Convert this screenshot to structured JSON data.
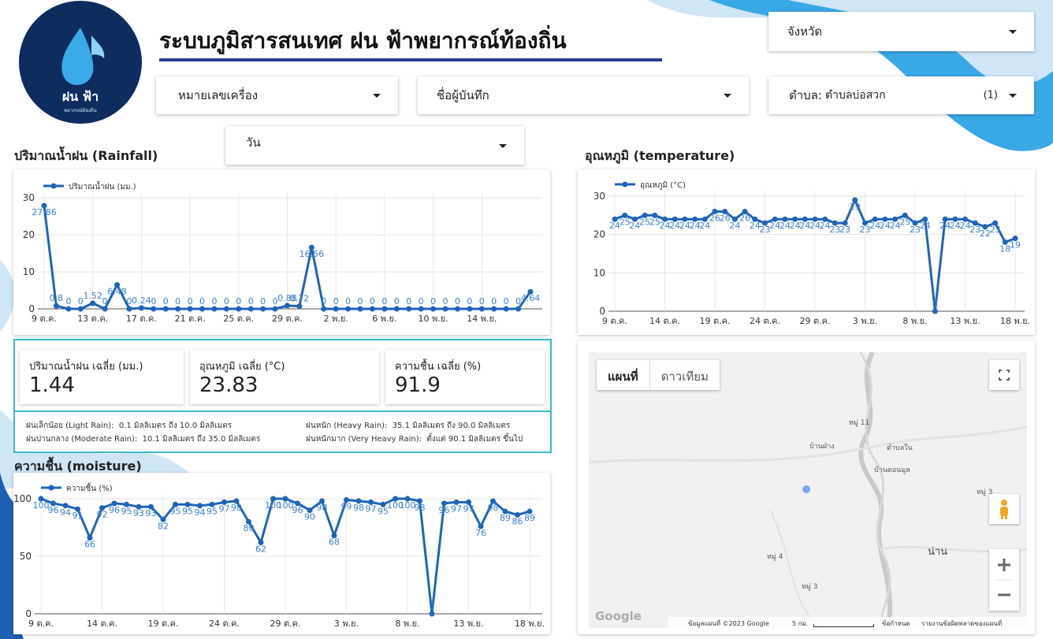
{
  "header": {
    "title": "ระบบภูมิสารสนเทศ ฝน ฟ้าพยากรณ์ท้องถิ่น",
    "logo": {
      "name": "ฝน ฟ้า",
      "tagline": "พยากรณ์ท้องถิ่น"
    }
  },
  "filters": {
    "province": "จังหวัด",
    "device": "หมายเลขเครื่อง",
    "recorder": "ชื่อผู้บันทึก",
    "subdistrict": {
      "label": "ตำบล:",
      "value": "ตำบลบ่อสวก",
      "count": "(1)"
    },
    "period": "วัน"
  },
  "chart_data": [
    {
      "type": "line",
      "title": "ปริมาณน้ำฝน (Rainfall)",
      "categories": [
        "9 ต.ค.",
        null,
        null,
        null,
        "13 ต.ค.",
        null,
        null,
        null,
        "17 ต.ค.",
        null,
        null,
        null,
        "21 ต.ค.",
        null,
        null,
        null,
        "25 ต.ค.",
        null,
        null,
        null,
        "29 ต.ค.",
        null,
        null,
        null,
        "2 พ.ย.",
        null,
        null,
        null,
        "6 พ.ย.",
        null,
        null,
        null,
        "10 พ.ย.",
        null,
        null,
        null,
        "14 พ.ย.",
        null,
        null,
        null,
        null
      ],
      "series": [
        {
          "name": "ปริมาณน้ำฝน (มม.)",
          "color": "#1f64b9",
          "values": [
            27.86,
            0.8,
            0,
            0,
            1.52,
            0,
            6.48,
            0,
            0.24,
            0,
            0,
            0,
            0,
            0,
            0,
            0,
            0,
            0,
            0,
            0,
            0.88,
            0.72,
            16.56,
            0,
            0,
            0,
            0,
            0,
            0,
            0,
            0,
            0,
            0,
            0,
            0,
            0,
            0,
            0,
            0,
            0,
            4.64
          ]
        }
      ],
      "ylim": [
        0,
        30
      ],
      "yticks": [
        0,
        10,
        20,
        30
      ],
      "grid": true
    },
    {
      "type": "line",
      "title": "อุณหภูมิ (temperature)",
      "categories": [
        "9 ต.ค.",
        null,
        null,
        null,
        null,
        "14 ต.ค.",
        null,
        null,
        null,
        null,
        "19 ต.ค.",
        null,
        null,
        null,
        null,
        "24 ต.ค.",
        null,
        null,
        null,
        null,
        "29 ต.ค.",
        null,
        null,
        null,
        null,
        "3 พ.ย.",
        null,
        null,
        null,
        null,
        "8 พ.ย.",
        null,
        null,
        null,
        null,
        "13 พ.ย.",
        null,
        null,
        null,
        null,
        "18 พ.ย."
      ],
      "series": [
        {
          "name": "อุณหภูมิ (°C)",
          "color": "#1f64b9",
          "values": [
            24,
            25,
            24,
            25,
            25,
            24,
            24,
            24,
            24,
            24,
            26,
            26,
            24,
            26,
            24,
            23,
            24,
            24,
            24,
            24,
            24,
            24,
            23,
            23,
            29,
            23,
            24,
            24,
            24,
            25,
            23,
            24,
            0,
            24,
            24,
            24,
            23,
            22,
            23,
            18,
            19
          ]
        }
      ],
      "ylim": [
        0,
        30
      ],
      "yticks": [
        0,
        10,
        20,
        30
      ],
      "grid": true
    },
    {
      "type": "line",
      "title": "ความชื้น (moisture)",
      "categories": [
        "9 ต.ค.",
        null,
        null,
        null,
        null,
        "14 ต.ค.",
        null,
        null,
        null,
        null,
        "19 ต.ค.",
        null,
        null,
        null,
        null,
        "24 ต.ค.",
        null,
        null,
        null,
        null,
        "29 ต.ค.",
        null,
        null,
        null,
        null,
        "3 พ.ย.",
        null,
        null,
        null,
        null,
        "8 พ.ย.",
        null,
        null,
        null,
        null,
        "13 พ.ย.",
        null,
        null,
        null,
        null,
        "18 พ.ย."
      ],
      "series": [
        {
          "name": "ความชื้น (%)",
          "color": "#1f64b9",
          "values": [
            100,
            96,
            94,
            91,
            66,
            92,
            96,
            95,
            93,
            93,
            82,
            95,
            95,
            94,
            95,
            97,
            98,
            80,
            62,
            100,
            100,
            96,
            90,
            98,
            68,
            99,
            98,
            97,
            95,
            100,
            100,
            98,
            0,
            96,
            97,
            97,
            76,
            98,
            89,
            86,
            89
          ]
        }
      ],
      "ylim": [
        0,
        100
      ],
      "yticks": [
        0,
        50,
        100
      ],
      "grid": true
    }
  ],
  "stats": [
    {
      "label": "ปริมาณน้ำฝน เฉลี่ย (มม.)",
      "value": 1.44
    },
    {
      "label": "อุณหภูมิ เฉลี่ย (°C)",
      "value": 23.83
    },
    {
      "label": "ความชื้น เฉลี่ย (%)",
      "value": 91.9
    }
  ],
  "rain_levels": [
    "ฝนเล็กน้อย (Light Rain):  0.1 มิลลิเมตร ถึง 10.0 มิลลิเมตร",
    "ฝนปานกลาง (Moderate Rain):  10.1 มิลลิเมตร ถึง 35.0 มิลลิเมตร",
    "ฝนหนัก (Heavy Rain):  35.1 มิลลิเมตร ถึง 90.0 มิลลิเมตร",
    "ฝนหนักมาก (Very Heavy Rain):  ตั้งแต่ 90.1 มิลลิเมตร ขึ้นไป"
  ],
  "map": {
    "tabs": [
      "แผนที่",
      "ดาวเทียม"
    ],
    "places": [
      "หมู่ 11",
      "บ้านฝ่าง",
      "ตำบลใน",
      "บ้านดอนมูล",
      "หมู่ 3",
      "น่าน",
      "หมู่ 4",
      "หมู่ 3"
    ],
    "logo": "Google",
    "footer": [
      "ข้อมูลแผนที่ ©2023 Google",
      "5 กม.",
      "ข้อกำหนด",
      "รายงานข้อผิดพลาดของแผนที่"
    ]
  }
}
